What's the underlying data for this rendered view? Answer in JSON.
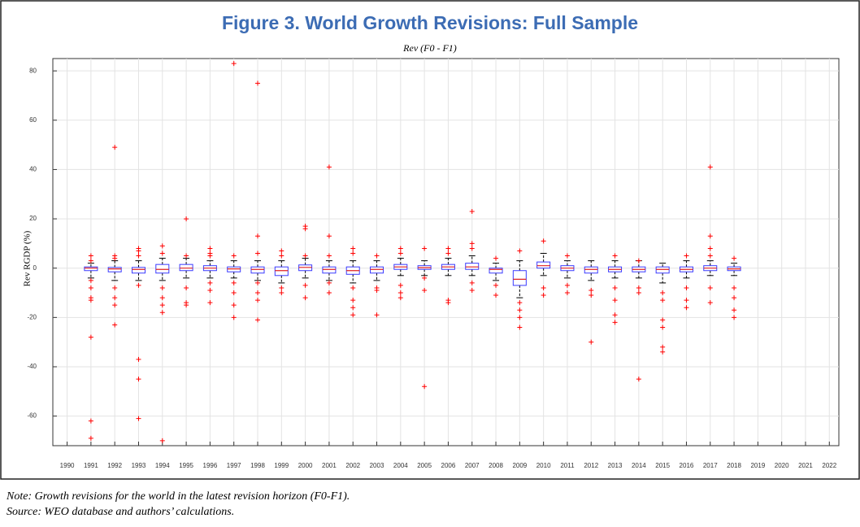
{
  "chart_data": {
    "type": "box",
    "title": "Figure 3. World Growth Revisions: Full Sample",
    "subtitle": "Rev (F0 - F1)",
    "y_label": "Rev RGDP (%)",
    "xlim": [
      1989.4,
      2022.4
    ],
    "xticks": [
      1990,
      1991,
      1992,
      1993,
      1994,
      1995,
      1996,
      1997,
      1998,
      1999,
      2000,
      2001,
      2002,
      2003,
      2004,
      2005,
      2006,
      2007,
      2008,
      2009,
      2010,
      2011,
      2012,
      2013,
      2014,
      2015,
      2016,
      2017,
      2018,
      2019,
      2020,
      2021,
      2022
    ],
    "ylim": [
      -72,
      85
    ],
    "yticks": [
      -60,
      -40,
      -20,
      0,
      20,
      40,
      60,
      80
    ],
    "grid": true,
    "box_color": "#3a3aff",
    "median_color": "#e02020",
    "whisker_color": "#000000",
    "outlier_color": "#ff0000",
    "boxes": [
      {
        "x": 1991,
        "q1": -1,
        "median": 0,
        "q3": 0.5,
        "whislo": -4,
        "whishi": 2,
        "outliers": [
          5,
          3,
          -5,
          -8,
          -12,
          -13,
          -28,
          -62,
          -69
        ]
      },
      {
        "x": 1992,
        "q1": -1.5,
        "median": -0.3,
        "q3": 0.3,
        "whislo": -5,
        "whishi": 3,
        "outliers": [
          49,
          5,
          4,
          -8,
          -12,
          -15,
          -23
        ]
      },
      {
        "x": 1993,
        "q1": -2,
        "median": -0.5,
        "q3": 0.3,
        "whislo": -5,
        "whishi": 3,
        "outliers": [
          8,
          7,
          5,
          -7,
          -37,
          -45,
          -61
        ]
      },
      {
        "x": 1994,
        "q1": -2,
        "median": -0.5,
        "q3": 1.5,
        "whislo": -5,
        "whishi": 4,
        "outliers": [
          9,
          6,
          -8,
          -12,
          -15,
          -18,
          -70
        ]
      },
      {
        "x": 1995,
        "q1": -1,
        "median": 0,
        "q3": 1.5,
        "whislo": -4,
        "whishi": 4,
        "outliers": [
          20,
          5,
          -8,
          -14,
          -15
        ]
      },
      {
        "x": 1996,
        "q1": -1,
        "median": 0,
        "q3": 1,
        "whislo": -4,
        "whishi": 3,
        "outliers": [
          8,
          6,
          5,
          -6,
          -9,
          -14
        ]
      },
      {
        "x": 1997,
        "q1": -1.5,
        "median": -0.3,
        "q3": 0.5,
        "whislo": -4,
        "whishi": 3,
        "outliers": [
          83,
          5,
          -6,
          -10,
          -15,
          -20
        ]
      },
      {
        "x": 1998,
        "q1": -2,
        "median": -0.5,
        "q3": 0.5,
        "whislo": -5,
        "whishi": 3,
        "outliers": [
          75,
          13,
          6,
          -6,
          -10,
          -13,
          -21
        ]
      },
      {
        "x": 1999,
        "q1": -3,
        "median": -1,
        "q3": 0.5,
        "whislo": -6,
        "whishi": 3,
        "outliers": [
          7,
          5,
          -8,
          -10
        ]
      },
      {
        "x": 2000,
        "q1": -1,
        "median": 0.3,
        "q3": 1.3,
        "whislo": -4,
        "whishi": 4,
        "outliers": [
          17,
          16,
          5,
          -7,
          -12
        ]
      },
      {
        "x": 2001,
        "q1": -2,
        "median": -0.5,
        "q3": 0.5,
        "whislo": -5,
        "whishi": 3,
        "outliers": [
          41,
          13,
          5,
          -6,
          -10
        ]
      },
      {
        "x": 2002,
        "q1": -2.5,
        "median": -1,
        "q3": 0.5,
        "whislo": -6,
        "whishi": 3,
        "outliers": [
          8,
          6,
          -8,
          -13,
          -16,
          -19
        ]
      },
      {
        "x": 2003,
        "q1": -2,
        "median": -0.5,
        "q3": 0.5,
        "whislo": -5,
        "whishi": 3,
        "outliers": [
          5,
          -8,
          -9,
          -19
        ]
      },
      {
        "x": 2004,
        "q1": -0.5,
        "median": 0.5,
        "q3": 1.5,
        "whislo": -3,
        "whishi": 4,
        "outliers": [
          8,
          6,
          -7,
          -10,
          -12
        ]
      },
      {
        "x": 2005,
        "q1": -0.5,
        "median": 0.2,
        "q3": 1,
        "whislo": -3,
        "whishi": 3,
        "outliers": [
          8,
          -4,
          -9,
          -48
        ]
      },
      {
        "x": 2006,
        "q1": -0.5,
        "median": 0.5,
        "q3": 1.5,
        "whislo": -3,
        "whishi": 4,
        "outliers": [
          8,
          6,
          -13,
          -14
        ]
      },
      {
        "x": 2007,
        "q1": -0.5,
        "median": 0.5,
        "q3": 2,
        "whislo": -3,
        "whishi": 5,
        "outliers": [
          23,
          10,
          8,
          -6,
          -9
        ]
      },
      {
        "x": 2008,
        "q1": -2,
        "median": -0.5,
        "q3": 0,
        "whislo": -5,
        "whishi": 2,
        "outliers": [
          4,
          -7,
          -11
        ]
      },
      {
        "x": 2009,
        "q1": -7,
        "median": -4.5,
        "q3": -1,
        "whislo": -12,
        "whishi": 3,
        "outliers": [
          7,
          -14,
          -17,
          -20,
          -24
        ]
      },
      {
        "x": 2010,
        "q1": 0,
        "median": 1,
        "q3": 2.5,
        "whislo": -3,
        "whishi": 6,
        "outliers": [
          11,
          -8,
          -11
        ]
      },
      {
        "x": 2011,
        "q1": -1,
        "median": 0,
        "q3": 1,
        "whislo": -4,
        "whishi": 3,
        "outliers": [
          5,
          -7,
          -10
        ]
      },
      {
        "x": 2012,
        "q1": -2,
        "median": -0.5,
        "q3": 0.5,
        "whislo": -5,
        "whishi": 3,
        "outliers": [
          -9,
          -11,
          -30
        ]
      },
      {
        "x": 2013,
        "q1": -1.5,
        "median": -0.5,
        "q3": 0.5,
        "whislo": -4,
        "whishi": 3,
        "outliers": [
          5,
          -8,
          -13,
          -19,
          -22
        ]
      },
      {
        "x": 2014,
        "q1": -1.5,
        "median": -0.5,
        "q3": 0.5,
        "whislo": -4,
        "whishi": 3,
        "outliers": [
          3,
          -8,
          -10,
          -45
        ]
      },
      {
        "x": 2015,
        "q1": -2,
        "median": -0.5,
        "q3": 0.5,
        "whislo": -6,
        "whishi": 2,
        "outliers": [
          -10,
          -13,
          -21,
          -24,
          -32,
          -34
        ]
      },
      {
        "x": 2016,
        "q1": -1.5,
        "median": -0.5,
        "q3": 0.5,
        "whislo": -4,
        "whishi": 3,
        "outliers": [
          5,
          -8,
          -13,
          -16
        ]
      },
      {
        "x": 2017,
        "q1": -1,
        "median": 0,
        "q3": 1,
        "whislo": -3,
        "whishi": 3,
        "outliers": [
          41,
          13,
          8,
          5,
          -8,
          -14
        ]
      },
      {
        "x": 2018,
        "q1": -1,
        "median": -0.3,
        "q3": 0.5,
        "whislo": -3,
        "whishi": 2,
        "outliers": [
          4,
          -8,
          -12,
          -17,
          -20
        ]
      }
    ]
  },
  "notes": [
    "Note: Growth revisions for the world in the latest revision horizon (F0-F1).",
    "Source: WEO database and authors’ calculations."
  ]
}
